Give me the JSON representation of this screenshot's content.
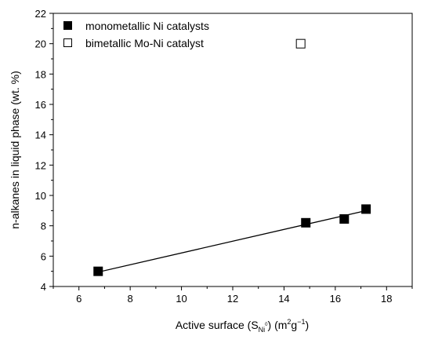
{
  "chart_data": {
    "type": "scatter",
    "xlabel": "Active surface (S",
    "xlabel_sub": "Ni",
    "xlabel_sup_sub": "0",
    "xlabel_unit_pre": ") (m",
    "xlabel_unit_sup1": "2",
    "xlabel_unit_mid": "g",
    "xlabel_unit_sup2": "−1",
    "xlabel_unit_post": ")",
    "ylabel": "n-alkanes in liquid phase (wt. %)",
    "xlim": [
      5,
      19
    ],
    "ylim": [
      4,
      22
    ],
    "x_ticks": [
      6,
      8,
      10,
      12,
      14,
      16,
      18
    ],
    "y_ticks": [
      4,
      6,
      8,
      10,
      12,
      14,
      16,
      18,
      20,
      22
    ],
    "grid": false,
    "legend_position": "top-left",
    "series": [
      {
        "name": "monometallic Ni catalysts",
        "marker": "filled-square",
        "color": "#000000",
        "points": [
          {
            "x": 6.75,
            "y": 5.0
          },
          {
            "x": 14.85,
            "y": 8.2
          },
          {
            "x": 16.35,
            "y": 8.45
          },
          {
            "x": 17.2,
            "y": 9.1
          }
        ]
      },
      {
        "name": "bimetallic Mo-Ni catalyst",
        "marker": "open-square",
        "color": "#000000",
        "points": [
          {
            "x": 14.65,
            "y": 20.0
          }
        ]
      }
    ],
    "fit_line": {
      "x": [
        6.75,
        17.2
      ],
      "y": [
        4.95,
        9.0
      ]
    }
  }
}
